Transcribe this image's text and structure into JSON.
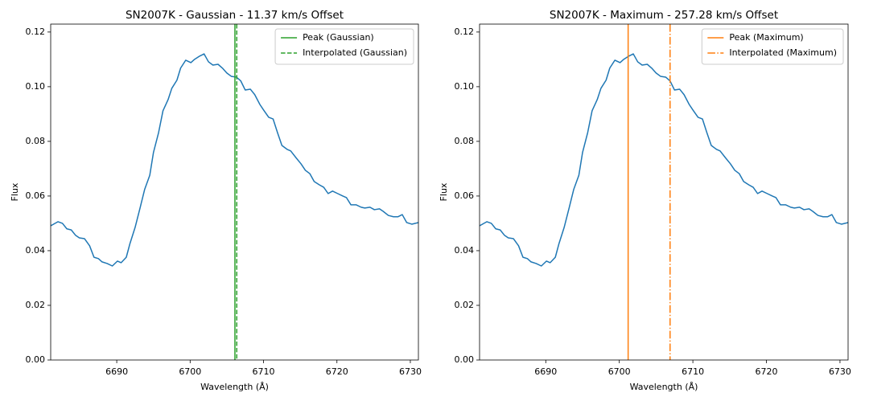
{
  "chart_data": [
    {
      "type": "line",
      "title": "SN2007K - Gaussian - 11.37 km/s Offset",
      "xlabel": "Wavelength (Å)",
      "ylabel": "Flux",
      "color": "#1f77b4",
      "x": [
        6681.0,
        6682.0,
        6682.6,
        6683.2,
        6683.8,
        6684.4,
        6684.9,
        6685.6,
        6686.3,
        6686.9,
        6687.5,
        6688.0,
        6688.7,
        6689.4,
        6690.1,
        6690.6,
        6691.3,
        6691.8,
        6692.5,
        6693.2,
        6693.8,
        6694.5,
        6695.0,
        6695.7,
        6696.3,
        6697.0,
        6697.5,
        6698.2,
        6698.7,
        6699.4,
        6700.1,
        6700.6,
        6701.3,
        6701.9,
        6702.5,
        6703.1,
        6703.8,
        6704.4,
        6705.0,
        6705.6,
        6706.3,
        6706.9,
        6707.5,
        6708.2,
        6708.8,
        6709.5,
        6710.0,
        6710.7,
        6711.3,
        6711.9,
        6712.5,
        6713.2,
        6713.7,
        6714.4,
        6715.1,
        6715.7,
        6716.3,
        6716.9,
        6717.6,
        6718.2,
        6718.8,
        6719.4,
        6720.1,
        6720.8,
        6721.3,
        6721.9,
        6722.6,
        6723.3,
        6723.8,
        6724.5,
        6725.1,
        6725.8,
        6726.3,
        6727.0,
        6727.7,
        6728.3,
        6728.9,
        6729.5,
        6730.2,
        6731.1
      ],
      "values": [
        0.0491,
        0.0506,
        0.05,
        0.048,
        0.0476,
        0.0456,
        0.0447,
        0.0444,
        0.0418,
        0.0376,
        0.0371,
        0.0359,
        0.0353,
        0.0344,
        0.0362,
        0.0356,
        0.0376,
        0.0426,
        0.0485,
        0.0559,
        0.0624,
        0.0676,
        0.0759,
        0.0832,
        0.0912,
        0.0953,
        0.0994,
        0.1024,
        0.1068,
        0.1097,
        0.1088,
        0.11,
        0.1112,
        0.112,
        0.1091,
        0.1079,
        0.1082,
        0.1068,
        0.105,
        0.1038,
        0.1035,
        0.1021,
        0.0988,
        0.0991,
        0.0971,
        0.0935,
        0.0915,
        0.0888,
        0.0882,
        0.0832,
        0.0785,
        0.0771,
        0.0765,
        0.0741,
        0.0718,
        0.0694,
        0.0682,
        0.0653,
        0.0641,
        0.0632,
        0.0609,
        0.0618,
        0.0609,
        0.06,
        0.0594,
        0.0568,
        0.0568,
        0.0559,
        0.0556,
        0.0559,
        0.055,
        0.0553,
        0.0544,
        0.0529,
        0.0524,
        0.0524,
        0.0532,
        0.0503,
        0.0497,
        0.0503
      ],
      "vlines": [
        {
          "name": "Peak (Gaussian)",
          "x": 6706.1,
          "color": "#2ca02c",
          "linestyle": "solid"
        },
        {
          "name": "Interpolated (Gaussian)",
          "x": 6706.35,
          "color": "#2ca02c",
          "linestyle": "dashed"
        }
      ],
      "legend": "upper right",
      "xlim": [
        6681.0,
        6731.1
      ],
      "ylim": [
        0,
        0.1229
      ],
      "xticks": [
        6690,
        6700,
        6710,
        6720,
        6730
      ],
      "yticks": [
        {
          "value": 0,
          "label": "0.00"
        },
        0.02,
        0.04,
        0.06,
        0.08,
        {
          "value": 0.1,
          "label": "0.10"
        },
        0.12
      ]
    },
    {
      "type": "line",
      "title": "SN2007K - Maximum - 257.28 km/s Offset",
      "xlabel": "Wavelength (Å)",
      "ylabel": "Flux",
      "color": "#1f77b4",
      "x": [
        6681.0,
        6682.0,
        6682.6,
        6683.2,
        6683.8,
        6684.4,
        6684.9,
        6685.6,
        6686.3,
        6686.9,
        6687.5,
        6688.0,
        6688.7,
        6689.4,
        6690.1,
        6690.6,
        6691.3,
        6691.8,
        6692.5,
        6693.2,
        6693.8,
        6694.5,
        6695.0,
        6695.7,
        6696.3,
        6697.0,
        6697.5,
        6698.2,
        6698.7,
        6699.4,
        6700.1,
        6700.6,
        6701.3,
        6701.9,
        6702.5,
        6703.1,
        6703.8,
        6704.4,
        6705.0,
        6705.6,
        6706.3,
        6706.9,
        6707.5,
        6708.2,
        6708.8,
        6709.5,
        6710.0,
        6710.7,
        6711.3,
        6711.9,
        6712.5,
        6713.2,
        6713.7,
        6714.4,
        6715.1,
        6715.7,
        6716.3,
        6716.9,
        6717.6,
        6718.2,
        6718.8,
        6719.4,
        6720.1,
        6720.8,
        6721.3,
        6721.9,
        6722.6,
        6723.3,
        6723.8,
        6724.5,
        6725.1,
        6725.8,
        6726.3,
        6727.0,
        6727.7,
        6728.3,
        6728.9,
        6729.5,
        6730.2,
        6731.1
      ],
      "values": [
        0.0491,
        0.0506,
        0.05,
        0.048,
        0.0476,
        0.0456,
        0.0447,
        0.0444,
        0.0418,
        0.0376,
        0.0371,
        0.0359,
        0.0353,
        0.0344,
        0.0362,
        0.0356,
        0.0376,
        0.0426,
        0.0485,
        0.0559,
        0.0624,
        0.0676,
        0.0759,
        0.0832,
        0.0912,
        0.0953,
        0.0994,
        0.1024,
        0.1068,
        0.1097,
        0.1088,
        0.11,
        0.1112,
        0.112,
        0.1091,
        0.1079,
        0.1082,
        0.1068,
        0.105,
        0.1038,
        0.1035,
        0.1021,
        0.0988,
        0.0991,
        0.0971,
        0.0935,
        0.0915,
        0.0888,
        0.0882,
        0.0832,
        0.0785,
        0.0771,
        0.0765,
        0.0741,
        0.0718,
        0.0694,
        0.0682,
        0.0653,
        0.0641,
        0.0632,
        0.0609,
        0.0618,
        0.0609,
        0.06,
        0.0594,
        0.0568,
        0.0568,
        0.0559,
        0.0556,
        0.0559,
        0.055,
        0.0553,
        0.0544,
        0.0529,
        0.0524,
        0.0524,
        0.0532,
        0.0503,
        0.0497,
        0.0503
      ],
      "vlines": [
        {
          "name": "Peak (Maximum)",
          "x": 6701.2,
          "color": "#ff7f0e",
          "linestyle": "solid"
        },
        {
          "name": "Interpolated (Maximum)",
          "x": 6706.9,
          "color": "#ff7f0e",
          "linestyle": "dashdot"
        }
      ],
      "legend": "upper right",
      "xlim": [
        6681.0,
        6731.1
      ],
      "ylim": [
        0,
        0.1229
      ],
      "xticks": [
        6690,
        6700,
        6710,
        6720,
        6730
      ],
      "yticks": [
        {
          "value": 0,
          "label": "0.00"
        },
        0.02,
        0.04,
        0.06,
        0.08,
        {
          "value": 0.1,
          "label": "0.10"
        },
        0.12
      ]
    }
  ]
}
